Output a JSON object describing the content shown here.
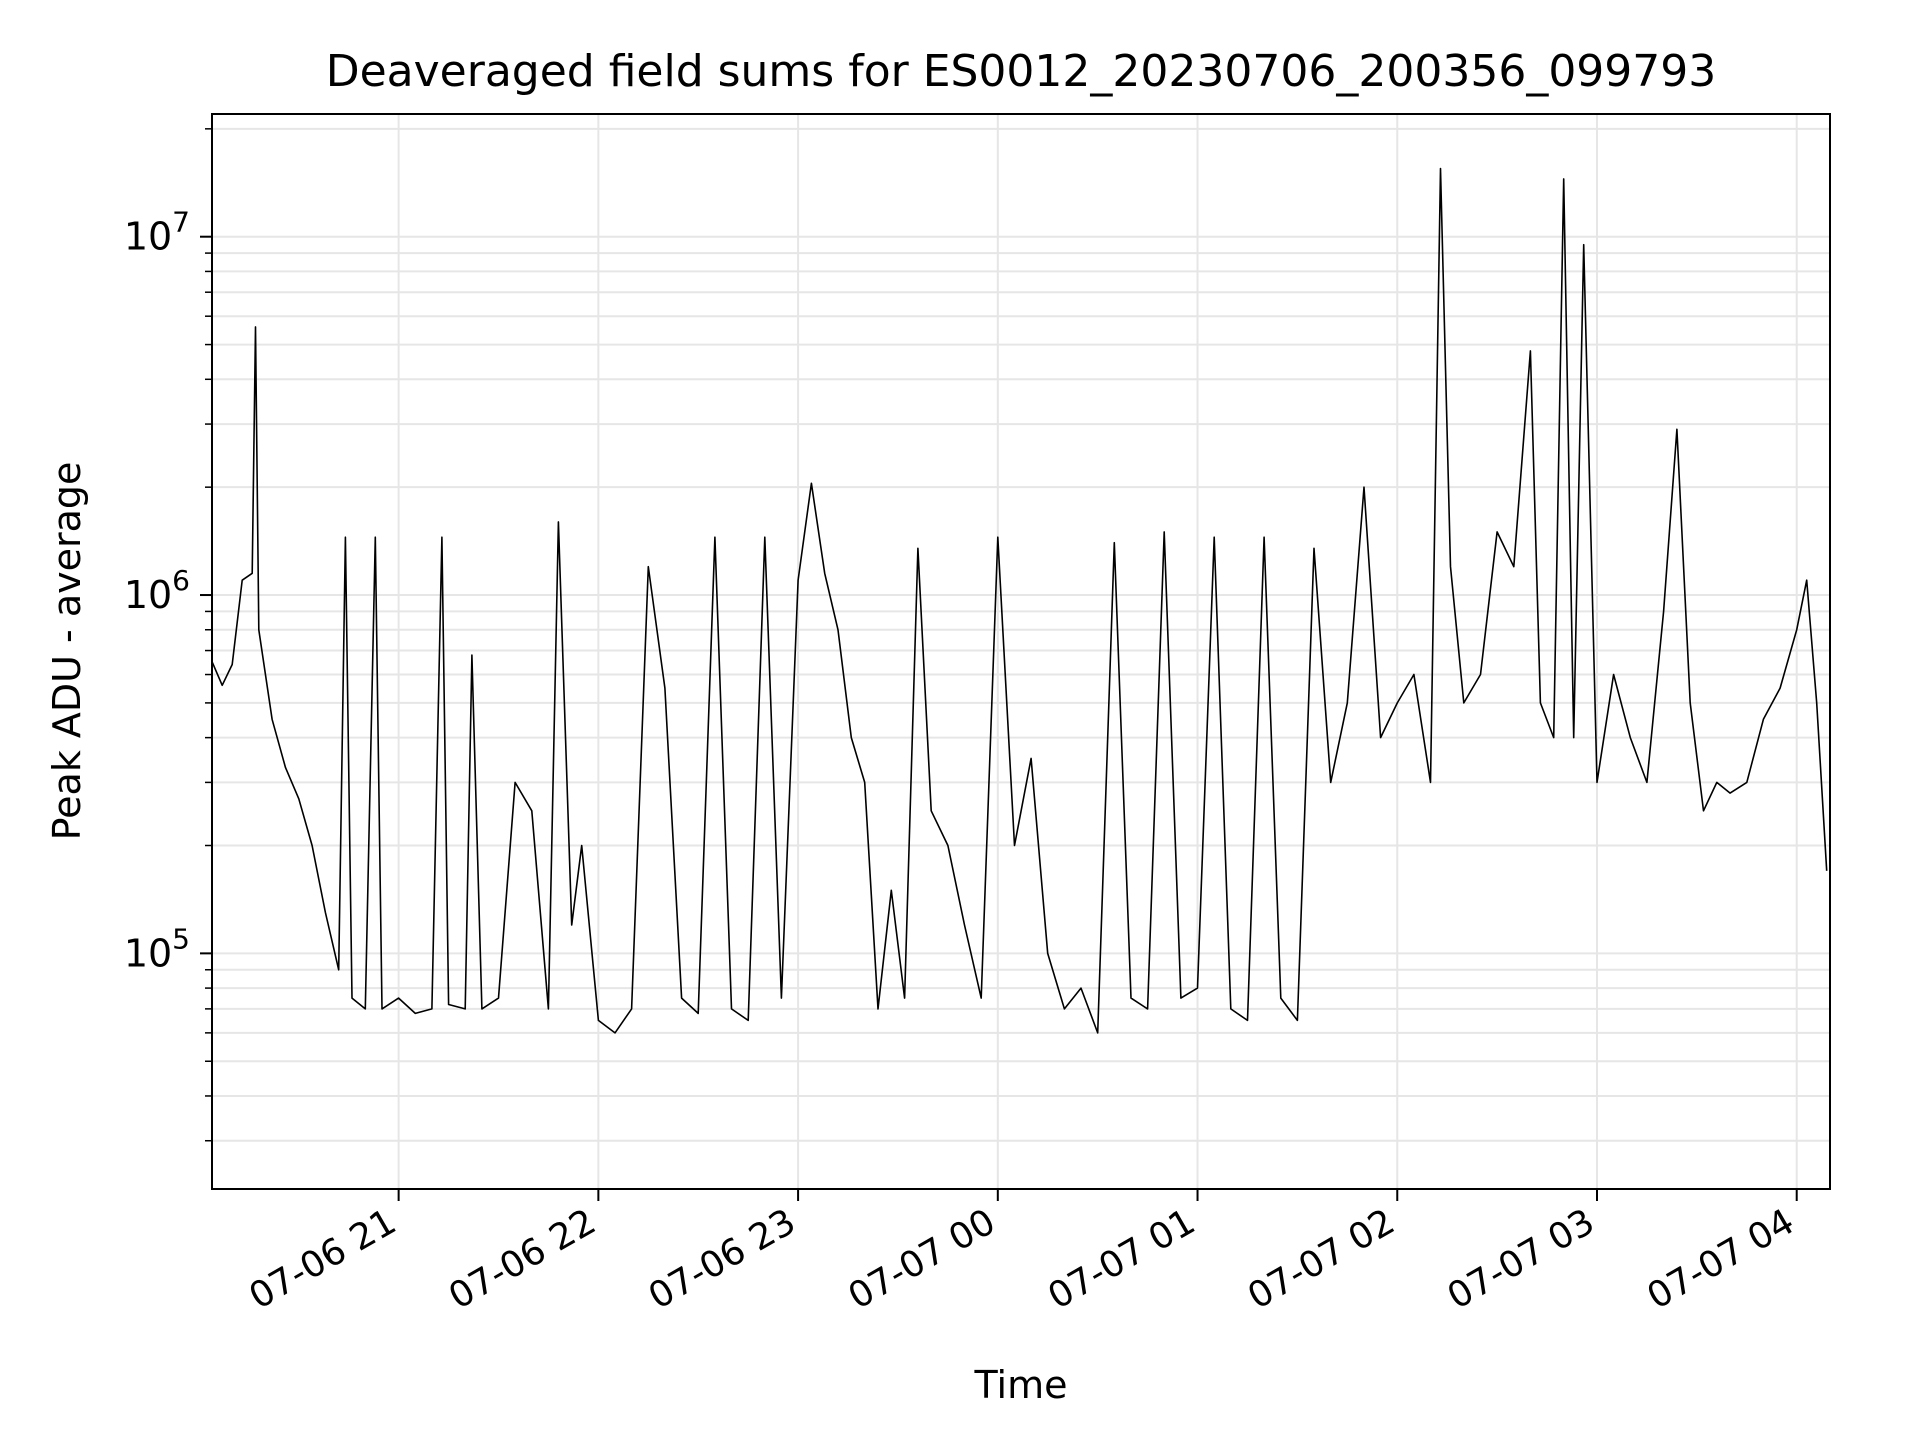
{
  "chart_data": {
    "type": "line",
    "title": "Deaveraged field sums for ES0012_20230706_200356_099793",
    "xlabel": "Time",
    "ylabel": "Peak ADU - average",
    "y_scale": "log",
    "grid": true,
    "x_range": [
      "2023-07-06 20:03:56",
      "2023-07-07 04:10:00"
    ],
    "ylim": [
      22000,
      22000000
    ],
    "x_ticks": [
      {
        "time": "2023-07-06 21:00",
        "label": "07-06 21"
      },
      {
        "time": "2023-07-06 22:00",
        "label": "07-06 22"
      },
      {
        "time": "2023-07-06 23:00",
        "label": "07-06 23"
      },
      {
        "time": "2023-07-07 00:00",
        "label": "07-07 00"
      },
      {
        "time": "2023-07-07 01:00",
        "label": "07-07 01"
      },
      {
        "time": "2023-07-07 02:00",
        "label": "07-07 02"
      },
      {
        "time": "2023-07-07 03:00",
        "label": "07-07 03"
      },
      {
        "time": "2023-07-07 04:00",
        "label": "07-07 04"
      }
    ],
    "y_ticks": [
      {
        "value": 100000,
        "mantissa": "10",
        "exp": "5"
      },
      {
        "value": 1000000,
        "mantissa": "10",
        "exp": "6"
      },
      {
        "value": 10000000,
        "mantissa": "10",
        "exp": "7"
      }
    ],
    "line_color": "#000000",
    "series": [
      {
        "values": [
          [
            "2023-07-06 20:04",
            650000
          ],
          [
            "2023-07-06 20:07",
            560000
          ],
          [
            "2023-07-06 20:10",
            640000
          ],
          [
            "2023-07-06 20:13",
            1100000
          ],
          [
            "2023-07-06 20:16",
            1150000
          ],
          [
            "2023-07-06 20:17",
            5600000
          ],
          [
            "2023-07-06 20:18",
            800000
          ],
          [
            "2023-07-06 20:22",
            450000
          ],
          [
            "2023-07-06 20:26",
            330000
          ],
          [
            "2023-07-06 20:30",
            270000
          ],
          [
            "2023-07-06 20:34",
            200000
          ],
          [
            "2023-07-06 20:38",
            130000
          ],
          [
            "2023-07-06 20:42",
            90000
          ],
          [
            "2023-07-06 20:44",
            1450000
          ],
          [
            "2023-07-06 20:46",
            75000
          ],
          [
            "2023-07-06 20:50",
            70000
          ],
          [
            "2023-07-06 20:53",
            1450000
          ],
          [
            "2023-07-06 20:55",
            70000
          ],
          [
            "2023-07-06 21:00",
            75000
          ],
          [
            "2023-07-06 21:05",
            68000
          ],
          [
            "2023-07-06 21:10",
            70000
          ],
          [
            "2023-07-06 21:13",
            1450000
          ],
          [
            "2023-07-06 21:15",
            72000
          ],
          [
            "2023-07-06 21:20",
            70000
          ],
          [
            "2023-07-06 21:22",
            680000
          ],
          [
            "2023-07-06 21:25",
            70000
          ],
          [
            "2023-07-06 21:30",
            75000
          ],
          [
            "2023-07-06 21:35",
            300000
          ],
          [
            "2023-07-06 21:40",
            250000
          ],
          [
            "2023-07-06 21:45",
            70000
          ],
          [
            "2023-07-06 21:48",
            1600000
          ],
          [
            "2023-07-06 21:52",
            120000
          ],
          [
            "2023-07-06 21:55",
            200000
          ],
          [
            "2023-07-06 22:00",
            65000
          ],
          [
            "2023-07-06 22:05",
            60000
          ],
          [
            "2023-07-06 22:10",
            70000
          ],
          [
            "2023-07-06 22:15",
            1200000
          ],
          [
            "2023-07-06 22:20",
            550000
          ],
          [
            "2023-07-06 22:25",
            75000
          ],
          [
            "2023-07-06 22:30",
            68000
          ],
          [
            "2023-07-06 22:35",
            1450000
          ],
          [
            "2023-07-06 22:40",
            70000
          ],
          [
            "2023-07-06 22:45",
            65000
          ],
          [
            "2023-07-06 22:50",
            1450000
          ],
          [
            "2023-07-06 22:55",
            75000
          ],
          [
            "2023-07-06 23:00",
            1100000
          ],
          [
            "2023-07-06 23:04",
            2050000
          ],
          [
            "2023-07-06 23:08",
            1150000
          ],
          [
            "2023-07-06 23:12",
            800000
          ],
          [
            "2023-07-06 23:16",
            400000
          ],
          [
            "2023-07-06 23:20",
            300000
          ],
          [
            "2023-07-06 23:24",
            70000
          ],
          [
            "2023-07-06 23:28",
            150000
          ],
          [
            "2023-07-06 23:32",
            75000
          ],
          [
            "2023-07-06 23:36",
            1350000
          ],
          [
            "2023-07-06 23:40",
            250000
          ],
          [
            "2023-07-06 23:45",
            200000
          ],
          [
            "2023-07-06 23:50",
            120000
          ],
          [
            "2023-07-06 23:55",
            75000
          ],
          [
            "2023-07-07 00:00",
            1450000
          ],
          [
            "2023-07-07 00:05",
            200000
          ],
          [
            "2023-07-07 00:10",
            350000
          ],
          [
            "2023-07-07 00:15",
            100000
          ],
          [
            "2023-07-07 00:20",
            70000
          ],
          [
            "2023-07-07 00:25",
            80000
          ],
          [
            "2023-07-07 00:30",
            60000
          ],
          [
            "2023-07-07 00:35",
            1400000
          ],
          [
            "2023-07-07 00:40",
            75000
          ],
          [
            "2023-07-07 00:45",
            70000
          ],
          [
            "2023-07-07 00:50",
            1500000
          ],
          [
            "2023-07-07 00:55",
            75000
          ],
          [
            "2023-07-07 01:00",
            80000
          ],
          [
            "2023-07-07 01:05",
            1450000
          ],
          [
            "2023-07-07 01:10",
            70000
          ],
          [
            "2023-07-07 01:15",
            65000
          ],
          [
            "2023-07-07 01:20",
            1450000
          ],
          [
            "2023-07-07 01:25",
            75000
          ],
          [
            "2023-07-07 01:30",
            65000
          ],
          [
            "2023-07-07 01:35",
            1350000
          ],
          [
            "2023-07-07 01:40",
            300000
          ],
          [
            "2023-07-07 01:45",
            500000
          ],
          [
            "2023-07-07 01:50",
            2000000
          ],
          [
            "2023-07-07 01:55",
            400000
          ],
          [
            "2023-07-07 02:00",
            500000
          ],
          [
            "2023-07-07 02:05",
            600000
          ],
          [
            "2023-07-07 02:10",
            300000
          ],
          [
            "2023-07-07 02:13",
            15500000
          ],
          [
            "2023-07-07 02:16",
            1200000
          ],
          [
            "2023-07-07 02:20",
            500000
          ],
          [
            "2023-07-07 02:25",
            600000
          ],
          [
            "2023-07-07 02:30",
            1500000
          ],
          [
            "2023-07-07 02:35",
            1200000
          ],
          [
            "2023-07-07 02:40",
            4800000
          ],
          [
            "2023-07-07 02:43",
            500000
          ],
          [
            "2023-07-07 02:47",
            400000
          ],
          [
            "2023-07-07 02:50",
            14500000
          ],
          [
            "2023-07-07 02:53",
            400000
          ],
          [
            "2023-07-07 02:56",
            9500000
          ],
          [
            "2023-07-07 03:00",
            300000
          ],
          [
            "2023-07-07 03:05",
            600000
          ],
          [
            "2023-07-07 03:10",
            400000
          ],
          [
            "2023-07-07 03:15",
            300000
          ],
          [
            "2023-07-07 03:20",
            900000
          ],
          [
            "2023-07-07 03:24",
            2900000
          ],
          [
            "2023-07-07 03:28",
            500000
          ],
          [
            "2023-07-07 03:32",
            250000
          ],
          [
            "2023-07-07 03:36",
            300000
          ],
          [
            "2023-07-07 03:40",
            280000
          ],
          [
            "2023-07-07 03:45",
            300000
          ],
          [
            "2023-07-07 03:50",
            450000
          ],
          [
            "2023-07-07 03:55",
            550000
          ],
          [
            "2023-07-07 04:00",
            800000
          ],
          [
            "2023-07-07 04:03",
            1100000
          ],
          [
            "2023-07-07 04:06",
            500000
          ],
          [
            "2023-07-07 04:09",
            170000
          ]
        ]
      }
    ]
  }
}
